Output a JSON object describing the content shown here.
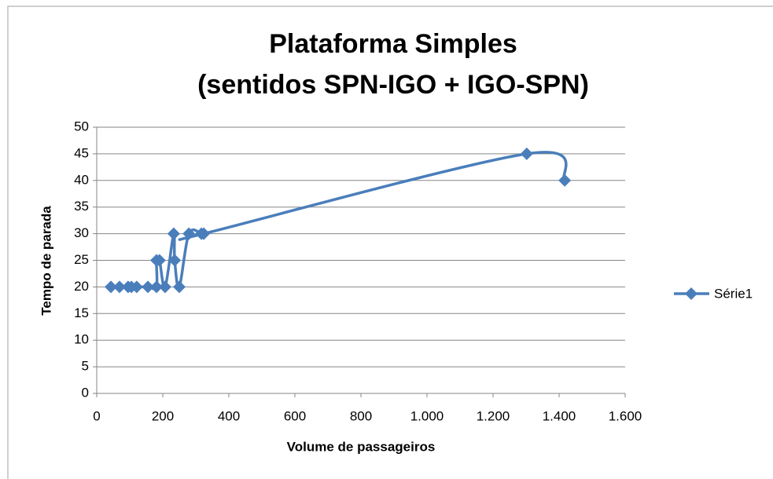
{
  "chart_data": {
    "type": "scatter",
    "title": [
      "Plataforma Simples",
      "(sentidos SPN-IGO + IGO-SPN)"
    ],
    "x_label": "Volume de passageiros",
    "y_label": "Tempo de parada",
    "series": [
      {
        "name": "Série1",
        "color": "#4a7ebb",
        "x": [
          43,
          69,
          95,
          105,
          121,
          155,
          181,
          181,
          190,
          207,
          233,
          236,
          250,
          279,
          317,
          324,
          1302,
          1417
        ],
        "values": [
          20,
          20,
          20,
          20,
          20,
          20,
          20,
          25,
          25,
          20,
          30,
          25,
          20,
          30,
          30,
          30,
          45,
          40
        ]
      }
    ],
    "xlim": [
      0,
      1600
    ],
    "xticks": [
      0,
      200,
      400,
      600,
      800,
      {
        "value": 1000,
        "label": "1.000"
      },
      {
        "value": 1200,
        "label": "1.200"
      },
      {
        "value": 1400,
        "label": "1.400"
      },
      {
        "value": 1600,
        "label": "1.600"
      }
    ],
    "ylim": [
      0,
      50
    ],
    "yticks": [
      0,
      5,
      10,
      15,
      20,
      25,
      30,
      35,
      40,
      45,
      50
    ],
    "grid": true,
    "legend": "right",
    "smooth": true
  }
}
